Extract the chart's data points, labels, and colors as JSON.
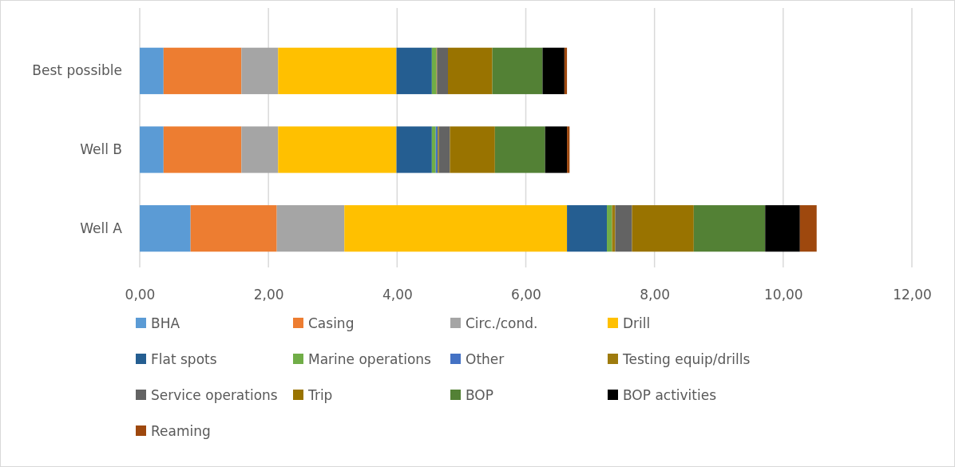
{
  "chart_data": {
    "type": "bar",
    "orientation": "horizontal",
    "stacked": true,
    "categories": [
      "Best possible",
      "Well B",
      "Well A"
    ],
    "series": [
      {
        "name": "BHA",
        "color": "#5b9bd5",
        "values": [
          0.37,
          0.37,
          0.79
        ]
      },
      {
        "name": "Casing",
        "color": "#ed7d31",
        "values": [
          1.21,
          1.21,
          1.34
        ]
      },
      {
        "name": "Circ./cond.",
        "color": "#a5a5a5",
        "values": [
          0.57,
          0.57,
          1.05
        ]
      },
      {
        "name": "Drill",
        "color": "#ffc000",
        "values": [
          1.84,
          1.84,
          3.46
        ]
      },
      {
        "name": "Flat spots",
        "color": "#255e91",
        "values": [
          0.55,
          0.55,
          0.62
        ]
      },
      {
        "name": "Marine operations",
        "color": "#70ad47",
        "values": [
          0.07,
          0.06,
          0.08
        ]
      },
      {
        "name": "Other",
        "color": "#4472c4",
        "values": [
          0,
          0.03,
          0
        ]
      },
      {
        "name": "Testing equip/drills",
        "color": "#9e7b0e",
        "values": [
          0.01,
          0.02,
          0.05
        ]
      },
      {
        "name": "Service operations",
        "color": "#636363",
        "values": [
          0.17,
          0.17,
          0.26
        ]
      },
      {
        "name": "Trip",
        "color": "#997300",
        "values": [
          0.69,
          0.7,
          0.96
        ]
      },
      {
        "name": "BOP",
        "color": "#538135",
        "values": [
          0.78,
          0.78,
          1.11
        ]
      },
      {
        "name": "BOP activities",
        "color": "#000000",
        "values": [
          0.34,
          0.34,
          0.54
        ]
      },
      {
        "name": "Reaming",
        "color": "#9e480e",
        "values": [
          0.04,
          0.04,
          0.26
        ]
      }
    ],
    "xlim": [
      0,
      12
    ],
    "xticks": [
      {
        "value": 0,
        "label": "0,00"
      },
      {
        "value": 2,
        "label": "2,00"
      },
      {
        "value": 4,
        "label": "4,00"
      },
      {
        "value": 6,
        "label": "6,00"
      },
      {
        "value": 8,
        "label": "8,00"
      },
      {
        "value": 10,
        "label": "10,00"
      },
      {
        "value": 12,
        "label": "12,00"
      }
    ],
    "grid": "x",
    "legend": "bottom"
  }
}
